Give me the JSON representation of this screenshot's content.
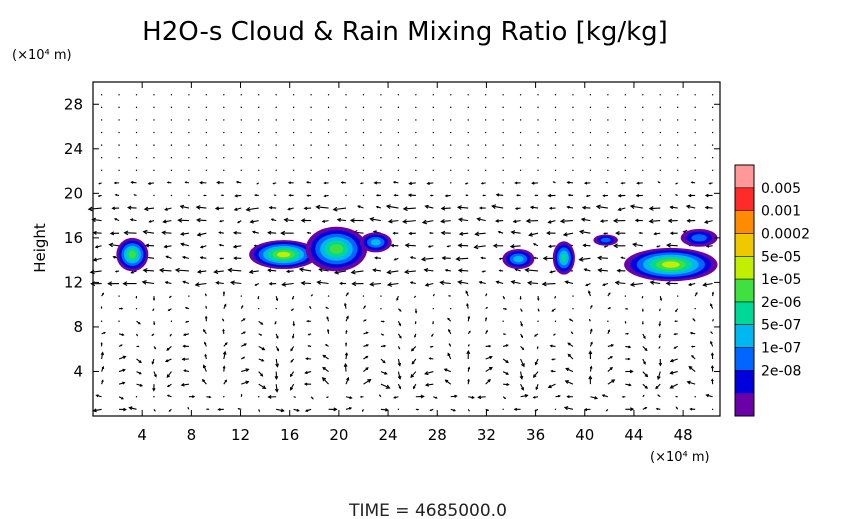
{
  "chart_data": {
    "type": "heatmap",
    "title": "H2O-s Cloud & Rain Mixing Ratio [kg/kg]",
    "xlabel": "",
    "x_unit": "(×10⁴ m)",
    "ylabel": "Height",
    "y_unit": "(×10⁴ m)",
    "xlim": [
      0,
      51
    ],
    "ylim": [
      0,
      30
    ],
    "x_ticks": [
      "4",
      "8",
      "12",
      "16",
      "20",
      "24",
      "28",
      "32",
      "36",
      "40",
      "44",
      "48"
    ],
    "y_ticks": [
      "4",
      "8",
      "12",
      "16",
      "20",
      "24",
      "28"
    ],
    "time_label": "TIME  =  4685000.0",
    "colorbar": {
      "labels": [
        "0.005",
        "0.001",
        "0.0002",
        "5e-05",
        "1e-05",
        "2e-06",
        "5e-07",
        "1e-07",
        "2e-08"
      ],
      "colors": [
        "#ff9898",
        "#ff2a2a",
        "#ff8c00",
        "#f0c800",
        "#c0f000",
        "#40e040",
        "#00d898",
        "#00b8f0",
        "#0066ff",
        "#0000dd",
        "#6a00a8"
      ]
    },
    "cloud_cells": [
      {
        "x": 3.2,
        "y": 14.5,
        "rx": 1.3,
        "ry": 1.5,
        "level": 5
      },
      {
        "x": 15.5,
        "y": 14.5,
        "rx": 2.8,
        "ry": 1.3,
        "level": 6
      },
      {
        "x": 19.8,
        "y": 15.0,
        "rx": 2.5,
        "ry": 2.0,
        "level": 5
      },
      {
        "x": 23.0,
        "y": 15.6,
        "rx": 1.3,
        "ry": 0.9,
        "level": 3
      },
      {
        "x": 34.6,
        "y": 14.1,
        "rx": 1.3,
        "ry": 0.9,
        "level": 3
      },
      {
        "x": 38.3,
        "y": 14.2,
        "rx": 0.9,
        "ry": 1.5,
        "level": 4
      },
      {
        "x": 41.7,
        "y": 15.8,
        "rx": 1.0,
        "ry": 0.5,
        "level": 2
      },
      {
        "x": 47.0,
        "y": 13.6,
        "rx": 3.8,
        "ry": 1.5,
        "level": 6
      },
      {
        "x": 49.3,
        "y": 16.0,
        "rx": 1.5,
        "ry": 0.8,
        "level": 2
      }
    ]
  }
}
